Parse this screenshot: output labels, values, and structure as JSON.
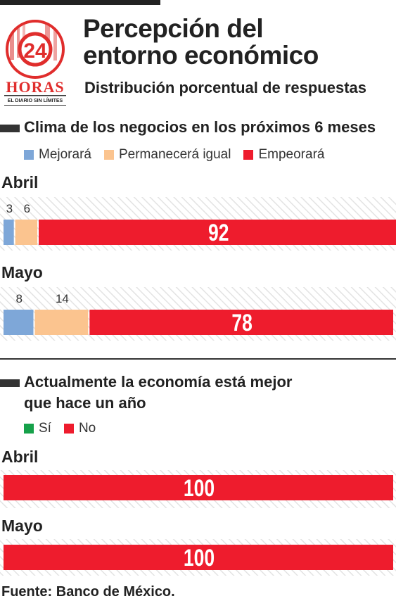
{
  "header": {
    "title_line1": "Percepción del",
    "title_line2": "entorno económico",
    "subtitle": "Distribución porcentual de respuestas"
  },
  "logo": {
    "number": "24",
    "word": "HORAS",
    "tagline": "EL DIARIO SIN LÍMITES"
  },
  "colors": {
    "mejorara": "#7ea7d8",
    "permanecera": "#fbc48f",
    "empeorara": "#ee1c2d",
    "si": "#16a14a",
    "no": "#ee1c2d"
  },
  "chart_data": [
    {
      "type": "bar",
      "orientation": "horizontal",
      "stacked": true,
      "title": "Clima de los negocios en los próximos 6 meses",
      "categories": [
        "Abril",
        "Mayo"
      ],
      "series": [
        {
          "name": "Mejorará",
          "values": [
            3,
            8
          ]
        },
        {
          "name": "Permanecerá igual",
          "values": [
            6,
            14
          ]
        },
        {
          "name": "Empeorará",
          "values": [
            92,
            78
          ]
        }
      ],
      "xlim": [
        0,
        100
      ],
      "legend": "top"
    },
    {
      "type": "bar",
      "orientation": "horizontal",
      "stacked": true,
      "title_line1": "Actualmente la economía está mejor",
      "title_line2": "que hace un año",
      "categories": [
        "Abril",
        "Mayo"
      ],
      "series": [
        {
          "name": "Sí",
          "values": [
            0,
            0
          ]
        },
        {
          "name": "No",
          "values": [
            100,
            100
          ]
        }
      ],
      "xlim": [
        0,
        100
      ],
      "legend": "top"
    }
  ],
  "source": "Fuente: Banco de México."
}
